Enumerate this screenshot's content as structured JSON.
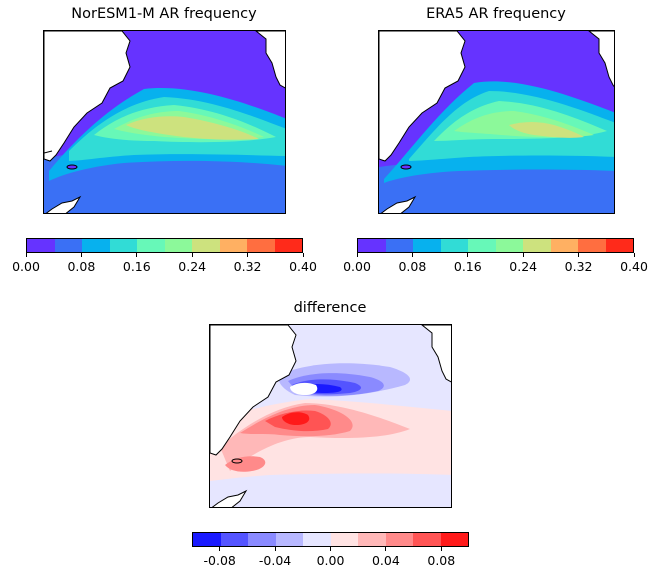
{
  "panels": {
    "model": {
      "title": "NorESM1-M AR frequency"
    },
    "reanalysis": {
      "title": "ERA5 AR frequency"
    },
    "diff": {
      "title": "difference"
    }
  },
  "colorbars": {
    "frequency": {
      "ticks": [
        "0.00",
        "0.08",
        "0.16",
        "0.24",
        "0.32",
        "0.40"
      ],
      "colors": [
        "#6633ff",
        "#3a70f5",
        "#07b1ee",
        "#31dcd6",
        "#67f8b8",
        "#8cf99a",
        "#cde27e",
        "#ffb062",
        "#ff6e40",
        "#ff2a1a"
      ]
    },
    "difference": {
      "ticks": [
        "-0.08",
        "-0.04",
        "0.00",
        "0.04",
        "0.08"
      ],
      "colors": [
        "#1a1aff",
        "#5454ff",
        "#8a8aff",
        "#b8b8ff",
        "#e6e6ff",
        "#ffe3e3",
        "#ffb8b8",
        "#ff8a8a",
        "#ff5454",
        "#ff1a1a"
      ]
    }
  },
  "colors": {
    "land": "#ffffff",
    "coastline": "#000000",
    "background_frequency": "#6633ff",
    "background_difference": "#e6e6ff"
  }
}
